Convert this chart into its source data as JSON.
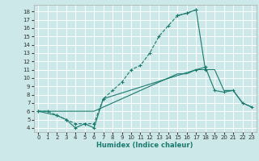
{
  "title": "",
  "xlabel": "Humidex (Indice chaleur)",
  "background_color": "#cde8e8",
  "grid_color": "#ffffff",
  "line_color": "#1a7a6e",
  "xlim": [
    -0.5,
    23.5
  ],
  "ylim": [
    3.5,
    18.8
  ],
  "xticks": [
    0,
    1,
    2,
    3,
    4,
    5,
    6,
    7,
    8,
    9,
    10,
    11,
    12,
    13,
    14,
    15,
    16,
    17,
    18,
    19,
    20,
    21,
    22,
    23
  ],
  "yticks": [
    4,
    5,
    6,
    7,
    8,
    9,
    10,
    11,
    12,
    13,
    14,
    15,
    16,
    17,
    18
  ],
  "series": [
    {
      "x": [
        0,
        1,
        2,
        3,
        4,
        5,
        6,
        7,
        8,
        9,
        10,
        11,
        12,
        13,
        14,
        15,
        16,
        17
      ],
      "y": [
        6,
        6,
        5.5,
        5,
        4.5,
        4.5,
        4.5,
        7.5,
        8.5,
        9.5,
        11,
        11.5,
        13,
        15,
        16.3,
        17.5,
        17.8,
        18.2
      ],
      "marker": "+",
      "linestyle": "--"
    },
    {
      "x": [
        15,
        16,
        17,
        18
      ],
      "y": [
        17.5,
        17.8,
        18.2,
        11
      ],
      "marker": "+",
      "linestyle": "-"
    },
    {
      "x": [
        0,
        1,
        2,
        3,
        4,
        5,
        6,
        7,
        8,
        9,
        10,
        11,
        12,
        13,
        14,
        15,
        16,
        17,
        18,
        19,
        20,
        21,
        22,
        23
      ],
      "y": [
        6,
        6,
        6,
        6,
        6,
        6,
        6,
        6.5,
        7,
        7.5,
        8,
        8.5,
        9,
        9.5,
        10,
        10.5,
        10.5,
        11,
        11,
        11,
        8.5,
        8.5,
        7,
        6.5
      ],
      "marker": null,
      "linestyle": "-"
    },
    {
      "x": [
        0,
        2,
        3,
        4,
        5,
        6,
        7,
        17,
        18,
        19,
        20,
        21,
        22,
        23
      ],
      "y": [
        6,
        5.5,
        5,
        4,
        4.5,
        4,
        7.5,
        11,
        11.3,
        8.5,
        8.3,
        8.5,
        7,
        6.5
      ],
      "marker": "+",
      "linestyle": "-"
    }
  ]
}
